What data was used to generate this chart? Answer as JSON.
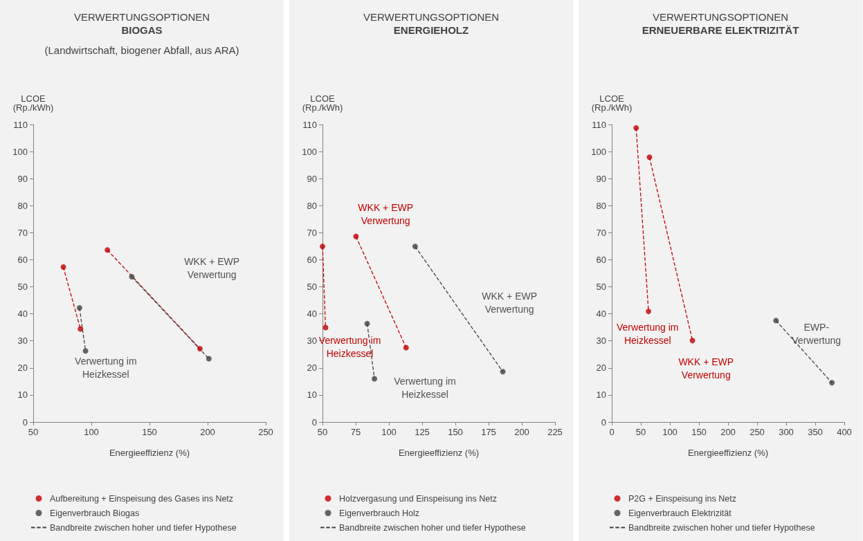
{
  "chart_data": [
    {
      "type": "scatter",
      "title": "VERWERTUNGSOPTIONEN",
      "subtitle": "BIOGAS",
      "xlabel": "Energieeffizienz (%)",
      "ylabel": "LCOE\n(Rp./kWh)",
      "xlim": [
        50,
        250
      ],
      "xticks": [
        50,
        100,
        150,
        200,
        250
      ],
      "ylim": [
        0,
        110
      ],
      "yticks": [
        0,
        10,
        20,
        30,
        40,
        50,
        60,
        70,
        80,
        90,
        100,
        110
      ],
      "grid": false,
      "legend": "bottom",
      "series": [
        {
          "name": "Aufbereitung + Einspeisung des Gases ins Netz",
          "color": "#c00000",
          "marker": "circle",
          "x": [
            75.9,
            90.6,
            113.8,
            193.4
          ],
          "values": [
            57.3,
            34.4,
            63.6,
            27.1
          ]
        },
        {
          "name": "Eigenverbrauch Biogas",
          "color": "#404040",
          "marker": "circle",
          "x": [
            89.8,
            95,
            134.8,
            201.1
          ],
          "values": [
            42.2,
            26.3,
            53.7,
            23.4
          ]
        },
        {
          "color": "#c00000",
          "type": "line",
          "marker": "none",
          "line_style": "dashed",
          "x": [
            75.9,
            90.6,
            null,
            113.8,
            193.4
          ],
          "values": [
            57.3,
            34.4,
            null,
            63.6,
            27.1
          ]
        },
        {
          "name": "Bandbreite zwischen hoher und tiefer Hypothese",
          "color": "#404040",
          "type": "line",
          "marker": "none",
          "line_style": "dashed",
          "x": [
            89.8,
            95,
            null,
            134.8,
            201.1
          ],
          "values": [
            42.2,
            26.3,
            null,
            53.7,
            23.4
          ]
        }
      ],
      "annotations": [
        "(Landwirtschaft, biogener Abfall, aus ARA)",
        "WKK + EWP\nVerwertung",
        "Verwertung im\nHeizkessel"
      ]
    },
    {
      "type": "scatter",
      "title": "VERWERTUNGSOPTIONEN",
      "subtitle": "ENERGIEHOLZ",
      "xlabel": "Energieeffizienz (%)",
      "ylabel": "LCOE\n(Rp./kWh)",
      "xlim": [
        50,
        225
      ],
      "xticks": [
        50,
        75,
        100,
        125,
        150,
        175,
        200,
        225
      ],
      "ylim": [
        0,
        110
      ],
      "yticks": [
        0,
        10,
        20,
        30,
        40,
        50,
        60,
        70,
        80,
        90,
        100,
        110
      ],
      "grid": false,
      "legend": "bottom",
      "series": [
        {
          "name": "Holzvergasung und Einspeisung ins Netz",
          "color": "#c00000",
          "marker": "circle",
          "x": [
            50,
            52.3,
            75.2,
            112.9
          ],
          "values": [
            64.9,
            34.9,
            68.6,
            27.5
          ]
        },
        {
          "name": "Eigenverbrauch Holz",
          "color": "#404040",
          "marker": "circle",
          "x": [
            83.6,
            89.1,
            119.7,
            185.7
          ],
          "values": [
            36.4,
            16.0,
            64.9,
            18.6
          ]
        },
        {
          "color": "#c00000",
          "type": "line",
          "marker": "none",
          "line_style": "dashed",
          "x": [
            50,
            52.3,
            null,
            75.2,
            112.9
          ],
          "values": [
            64.9,
            34.9,
            null,
            68.6,
            27.5
          ]
        },
        {
          "name": "Bandbreite zwischen hoher und tiefer Hypothese",
          "color": "#404040",
          "type": "line",
          "marker": "none",
          "line_style": "dashed",
          "x": [
            83.6,
            89.1,
            null,
            119.7,
            185.7
          ],
          "values": [
            36.4,
            16.0,
            null,
            64.9,
            18.6
          ]
        }
      ],
      "annotations": [
        "WKK + EWP\nVerwertung",
        "Verwertung im\nHeizkessel",
        "WKK + EWP\nVerwertung",
        "Verwertung im\nHeizkessel"
      ]
    },
    {
      "type": "scatter",
      "title": "VERWERTUNGSOPTIONEN",
      "subtitle": "ERNEUERBARE ELEKTRIZITÄT",
      "xlabel": "Energieeffizienz (%)",
      "ylabel": "LCOE\n(Rp./kWh)",
      "xlim": [
        0,
        400
      ],
      "xticks": [
        0,
        50,
        100,
        150,
        200,
        250,
        300,
        350,
        400
      ],
      "ylim": [
        0,
        110
      ],
      "yticks": [
        0,
        10,
        20,
        30,
        40,
        50,
        60,
        70,
        80,
        90,
        100,
        110
      ],
      "grid": false,
      "legend": "bottom",
      "series": [
        {
          "name": "P2G + Einspeisung ins Netz",
          "color": "#c00000",
          "marker": "circle",
          "x": [
            41.9,
            63.2,
            64.8,
            138.8
          ],
          "values": [
            108.7,
            40.9,
            97.9,
            30.1
          ]
        },
        {
          "name": "Eigenverbrauch Elektrizität",
          "color": "#404040",
          "marker": "circle",
          "x": [
            282.5,
            378.7
          ],
          "values": [
            37.5,
            14.5
          ]
        },
        {
          "color": "#c00000",
          "type": "line",
          "marker": "none",
          "line_style": "dashed",
          "x": [
            41.9,
            63.2,
            null,
            64.8,
            138.8
          ],
          "values": [
            108.7,
            40.9,
            null,
            97.9,
            30.1
          ]
        },
        {
          "name": "Bandbreite zwischen hoher und tiefer Hypothese",
          "color": "#404040",
          "type": "line",
          "marker": "none",
          "line_style": "dashed",
          "x": [
            282.5,
            378.7
          ],
          "values": [
            37.5,
            14.5
          ]
        }
      ],
      "annotations": [
        "Verwertung im\nHeizkessel",
        "WKK + EWP\nVerwertung",
        "EWP-\nVerwertung"
      ]
    }
  ]
}
